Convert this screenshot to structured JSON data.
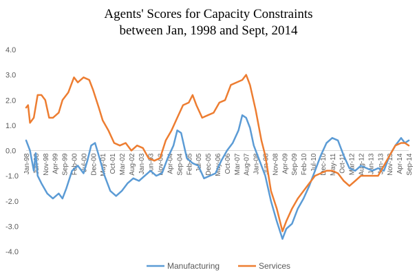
{
  "chart_data": {
    "type": "line",
    "title": [
      "Agents' Scores for Capacity Constraints",
      "between Jan, 1998 and Sept, 2014"
    ],
    "xlabel": "",
    "ylabel": "",
    "ylim": [
      -4.0,
      4.0
    ],
    "y_ticks": [
      "4.0",
      "3.0",
      "2.0",
      "1.0",
      "0.0",
      "-1.0",
      "-2.0",
      "-3.0",
      "-4.0"
    ],
    "x_tick_labels": [
      "Jan-98",
      "Jun-98",
      "Nov-98",
      "Apr-99",
      "Sep-99",
      "Feb-00",
      "Jul-00",
      "Dec-00",
      "May-01",
      "Oct-01",
      "Mar-02",
      "Aug-02",
      "Jan-03",
      "Jun-03",
      "Nov-03",
      "Apr-04",
      "Sep-04",
      "Feb-05",
      "Jul-05",
      "Dec-05",
      "May-06",
      "Oct-06",
      "Mar-07",
      "Aug-07",
      "Jan-08",
      "Jun-08",
      "Nov-08",
      "Apr-09",
      "Sep-09",
      "Feb-10",
      "Jul-10",
      "Dec-10",
      "May-11",
      "Oct-11",
      "Mar-12",
      "Aug-12",
      "Jan-13",
      "Jun-13",
      "Nov-13",
      "Apr-14",
      "Sep-14"
    ],
    "x_start": "1998-01",
    "x_end": "2014-09",
    "grid": false,
    "legend_position": "bottom",
    "series": [
      {
        "name": "Manufacturing",
        "color": "#5B9BD5",
        "points": [
          [
            "1998-01",
            0.4
          ],
          [
            "1998-03",
            0.0
          ],
          [
            "1998-05",
            -0.8
          ],
          [
            "1998-06",
            -0.1
          ],
          [
            "1998-07",
            -1.0
          ],
          [
            "1998-09",
            -1.3
          ],
          [
            "1998-12",
            -1.7
          ],
          [
            "1999-03",
            -1.9
          ],
          [
            "1999-06",
            -1.7
          ],
          [
            "1999-08",
            -1.9
          ],
          [
            "1999-10",
            -1.5
          ],
          [
            "2000-01",
            -0.8
          ],
          [
            "2000-04",
            -0.6
          ],
          [
            "2000-07",
            -0.9
          ],
          [
            "2000-09",
            -0.4
          ],
          [
            "2000-11",
            0.2
          ],
          [
            "2001-01",
            0.3
          ],
          [
            "2001-03",
            -0.2
          ],
          [
            "2001-06",
            -1.0
          ],
          [
            "2001-09",
            -1.6
          ],
          [
            "2001-12",
            -1.8
          ],
          [
            "2002-03",
            -1.6
          ],
          [
            "2002-06",
            -1.3
          ],
          [
            "2002-09",
            -1.1
          ],
          [
            "2002-12",
            -1.2
          ],
          [
            "2003-03",
            -1.0
          ],
          [
            "2003-06",
            -0.8
          ],
          [
            "2003-09",
            -1.0
          ],
          [
            "2003-12",
            -0.9
          ],
          [
            "2004-03",
            -0.3
          ],
          [
            "2004-06",
            0.2
          ],
          [
            "2004-08",
            0.8
          ],
          [
            "2004-10",
            0.7
          ],
          [
            "2005-01",
            -0.3
          ],
          [
            "2005-04",
            -0.5
          ],
          [
            "2005-07",
            -0.6
          ],
          [
            "2005-10",
            -1.1
          ],
          [
            "2006-01",
            -1.0
          ],
          [
            "2006-04",
            -0.9
          ],
          [
            "2006-07",
            -0.4
          ],
          [
            "2006-10",
            0.0
          ],
          [
            "2007-01",
            0.3
          ],
          [
            "2007-04",
            0.8
          ],
          [
            "2007-06",
            1.4
          ],
          [
            "2007-08",
            1.3
          ],
          [
            "2007-10",
            0.9
          ],
          [
            "2007-12",
            0.2
          ],
          [
            "2008-03",
            -0.4
          ],
          [
            "2008-06",
            -1.0
          ],
          [
            "2008-09",
            -2.0
          ],
          [
            "2008-12",
            -2.8
          ],
          [
            "2009-03",
            -3.5
          ],
          [
            "2009-05",
            -3.1
          ],
          [
            "2009-08",
            -2.9
          ],
          [
            "2009-11",
            -2.3
          ],
          [
            "2010-02",
            -1.9
          ],
          [
            "2010-05",
            -1.4
          ],
          [
            "2010-08",
            -0.8
          ],
          [
            "2010-11",
            -0.2
          ],
          [
            "2011-02",
            0.3
          ],
          [
            "2011-05",
            0.5
          ],
          [
            "2011-08",
            0.4
          ],
          [
            "2011-11",
            -0.2
          ],
          [
            "2012-02",
            -0.7
          ],
          [
            "2012-05",
            -0.8
          ],
          [
            "2012-08",
            -0.6
          ],
          [
            "2012-11",
            -0.7
          ],
          [
            "2013-02",
            -0.8
          ],
          [
            "2013-05",
            -0.7
          ],
          [
            "2013-08",
            -0.8
          ],
          [
            "2013-11",
            -0.2
          ],
          [
            "2014-02",
            0.2
          ],
          [
            "2014-05",
            0.5
          ],
          [
            "2014-07",
            0.3
          ],
          [
            "2014-09",
            0.4
          ]
        ]
      },
      {
        "name": "Services",
        "color": "#ED7D31",
        "points": [
          [
            "1998-01",
            1.7
          ],
          [
            "1998-02",
            1.8
          ],
          [
            "1998-03",
            1.1
          ],
          [
            "1998-05",
            1.3
          ],
          [
            "1998-07",
            2.2
          ],
          [
            "1998-09",
            2.2
          ],
          [
            "1998-11",
            2.0
          ],
          [
            "1999-01",
            1.3
          ],
          [
            "1999-03",
            1.3
          ],
          [
            "1999-06",
            1.5
          ],
          [
            "1999-08",
            2.0
          ],
          [
            "1999-11",
            2.3
          ],
          [
            "2000-02",
            2.9
          ],
          [
            "2000-04",
            2.7
          ],
          [
            "2000-07",
            2.9
          ],
          [
            "2000-10",
            2.8
          ],
          [
            "2000-12",
            2.4
          ],
          [
            "2001-03",
            1.7
          ],
          [
            "2001-05",
            1.2
          ],
          [
            "2001-08",
            0.8
          ],
          [
            "2001-11",
            0.3
          ],
          [
            "2002-02",
            0.2
          ],
          [
            "2002-05",
            0.3
          ],
          [
            "2002-08",
            0.0
          ],
          [
            "2002-11",
            0.2
          ],
          [
            "2003-02",
            0.1
          ],
          [
            "2003-05",
            -0.3
          ],
          [
            "2003-08",
            -0.4
          ],
          [
            "2003-11",
            -0.3
          ],
          [
            "2004-02",
            0.4
          ],
          [
            "2004-05",
            0.8
          ],
          [
            "2004-08",
            1.3
          ],
          [
            "2004-11",
            1.8
          ],
          [
            "2005-02",
            1.9
          ],
          [
            "2005-04",
            2.2
          ],
          [
            "2005-06",
            1.8
          ],
          [
            "2005-09",
            1.3
          ],
          [
            "2005-12",
            1.4
          ],
          [
            "2006-03",
            1.5
          ],
          [
            "2006-06",
            1.9
          ],
          [
            "2006-09",
            2.0
          ],
          [
            "2006-12",
            2.6
          ],
          [
            "2007-03",
            2.7
          ],
          [
            "2007-06",
            2.8
          ],
          [
            "2007-08",
            3.0
          ],
          [
            "2007-10",
            2.6
          ],
          [
            "2008-01",
            1.6
          ],
          [
            "2008-04",
            0.4
          ],
          [
            "2008-06",
            -0.2
          ],
          [
            "2008-09",
            -1.6
          ],
          [
            "2008-12",
            -2.3
          ],
          [
            "2009-03",
            -3.2
          ],
          [
            "2009-05",
            -2.8
          ],
          [
            "2009-08",
            -2.3
          ],
          [
            "2009-11",
            -1.9
          ],
          [
            "2010-02",
            -1.6
          ],
          [
            "2010-05",
            -1.3
          ],
          [
            "2010-08",
            -1.0
          ],
          [
            "2010-11",
            -0.9
          ],
          [
            "2011-02",
            -0.8
          ],
          [
            "2011-05",
            -0.8
          ],
          [
            "2011-08",
            -0.9
          ],
          [
            "2011-11",
            -1.2
          ],
          [
            "2012-02",
            -1.4
          ],
          [
            "2012-05",
            -1.2
          ],
          [
            "2012-08",
            -1.0
          ],
          [
            "2012-11",
            -1.0
          ],
          [
            "2013-02",
            -1.0
          ],
          [
            "2013-05",
            -1.0
          ],
          [
            "2013-08",
            -0.6
          ],
          [
            "2013-11",
            -0.2
          ],
          [
            "2014-02",
            0.2
          ],
          [
            "2014-05",
            0.3
          ],
          [
            "2014-07",
            0.3
          ],
          [
            "2014-09",
            0.2
          ]
        ]
      }
    ]
  }
}
